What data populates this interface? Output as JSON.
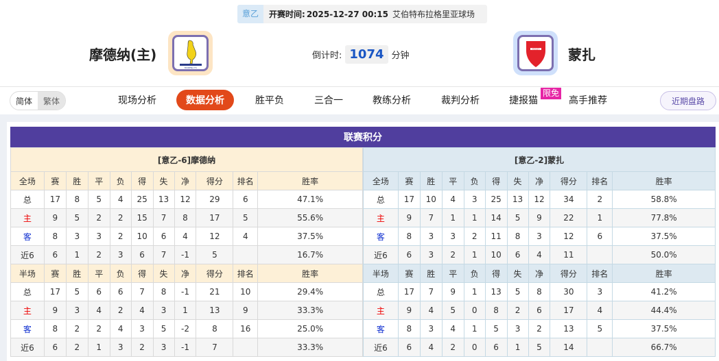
{
  "match": {
    "league": "意乙",
    "kickoff_label": "开赛时间:",
    "kickoff": "2025-12-27 00:15",
    "venue": "艾伯特布拉格里亚球场",
    "home": "摩德纳(主)",
    "away": "蒙扎",
    "countdown_label": "倒计时:",
    "countdown": "1074",
    "countdown_unit": "分钟",
    "home_logo_text": "MODENA FC",
    "away_logo_text": "MONZA"
  },
  "lang": {
    "simplified": "简体",
    "traditional": "繁体"
  },
  "nav": {
    "items": [
      "现场分析",
      "数据分析",
      "胜平负",
      "三合一",
      "教练分析",
      "裁判分析",
      "捷报猫",
      "高手推荐"
    ],
    "active": "数据分析",
    "badge": "限免",
    "recent": "近期盘路"
  },
  "colors": {
    "accent": "#e2491a",
    "header": "#503e9e",
    "home_label": "#e00000",
    "away_label": "#1030d0"
  },
  "standings": {
    "title": "联赛积分",
    "columns": [
      "赛",
      "胜",
      "平",
      "负",
      "得",
      "失",
      "净",
      "得分",
      "排名",
      "胜率"
    ],
    "full_label": "全场",
    "half_label": "半场",
    "home": {
      "team": "[意乙-6]摩德纳",
      "full": [
        [
          "总",
          "17",
          "8",
          "5",
          "4",
          "25",
          "13",
          "12",
          "29",
          "6",
          "47.1%"
        ],
        [
          "主",
          "9",
          "5",
          "2",
          "2",
          "15",
          "7",
          "8",
          "17",
          "5",
          "55.6%"
        ],
        [
          "客",
          "8",
          "3",
          "3",
          "2",
          "10",
          "6",
          "4",
          "12",
          "4",
          "37.5%"
        ],
        [
          "近6",
          "6",
          "1",
          "2",
          "3",
          "6",
          "7",
          "-1",
          "5",
          "",
          "16.7%"
        ]
      ],
      "half": [
        [
          "总",
          "17",
          "5",
          "6",
          "6",
          "7",
          "8",
          "-1",
          "21",
          "10",
          "29.4%"
        ],
        [
          "主",
          "9",
          "3",
          "4",
          "2",
          "4",
          "3",
          "1",
          "13",
          "9",
          "33.3%"
        ],
        [
          "客",
          "8",
          "2",
          "2",
          "4",
          "3",
          "5",
          "-2",
          "8",
          "16",
          "25.0%"
        ],
        [
          "近6",
          "6",
          "2",
          "1",
          "3",
          "2",
          "3",
          "-1",
          "7",
          "",
          "33.3%"
        ]
      ]
    },
    "away": {
      "team": "[意乙-2]蒙扎",
      "full": [
        [
          "总",
          "17",
          "10",
          "4",
          "3",
          "25",
          "13",
          "12",
          "34",
          "2",
          "58.8%"
        ],
        [
          "主",
          "9",
          "7",
          "1",
          "1",
          "14",
          "5",
          "9",
          "22",
          "1",
          "77.8%"
        ],
        [
          "客",
          "8",
          "3",
          "3",
          "2",
          "11",
          "8",
          "3",
          "12",
          "6",
          "37.5%"
        ],
        [
          "近6",
          "6",
          "3",
          "2",
          "1",
          "10",
          "6",
          "4",
          "11",
          "",
          "50.0%"
        ]
      ],
      "half": [
        [
          "总",
          "17",
          "7",
          "9",
          "1",
          "13",
          "5",
          "8",
          "30",
          "3",
          "41.2%"
        ],
        [
          "主",
          "9",
          "4",
          "5",
          "0",
          "8",
          "2",
          "6",
          "17",
          "4",
          "44.4%"
        ],
        [
          "客",
          "8",
          "3",
          "4",
          "1",
          "5",
          "3",
          "2",
          "13",
          "5",
          "37.5%"
        ],
        [
          "近6",
          "6",
          "4",
          "2",
          "0",
          "6",
          "1",
          "5",
          "14",
          "",
          "66.7%"
        ]
      ]
    }
  }
}
